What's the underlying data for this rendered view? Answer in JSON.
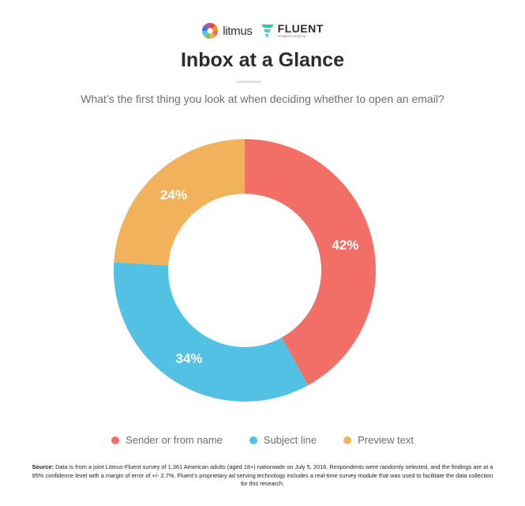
{
  "header": {
    "brand1": "litmus",
    "brand2": "FLUENT",
    "brand2_tag": "a Digital company"
  },
  "title": "Inbox at a Glance",
  "subtitle": "What’s the first thing you look at when deciding whether to open an email?",
  "chart_data": {
    "type": "pie",
    "donut": true,
    "title": "Inbox at a Glance",
    "subtitle": "What’s the first thing you look at when deciding whether to open an email?",
    "categories": [
      "Sender or from name",
      "Subject line",
      "Preview text"
    ],
    "values": [
      42,
      34,
      24
    ],
    "labels": [
      "42%",
      "34%",
      "24%"
    ],
    "colors": [
      "#f26f67",
      "#53c1e3",
      "#f2b25c"
    ],
    "legend_position": "bottom"
  },
  "legend": [
    {
      "label": "Sender or from name",
      "color": "#f26f67"
    },
    {
      "label": "Subject line",
      "color": "#53c1e3"
    },
    {
      "label": "Preview text",
      "color": "#f2b25c"
    }
  ],
  "source": {
    "label": "Source:",
    "text": " Data is from a joint Litmus-Fluent survey of 1,361 American adults (aged 18+) nationwide on July 5, 2016. Respondents were randomly selected, and the findings are at a 95% confidence level with a margin of error of +/- 2.7%. Fluent’s proprietary ad serving technology includes a real-time survey module that was used to facilitate the data collection for this research."
  }
}
